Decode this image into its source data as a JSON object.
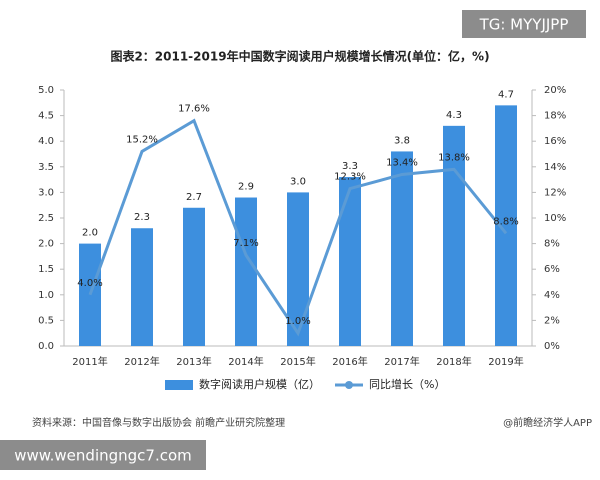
{
  "chart_data": {
    "type": "bar",
    "title": "图表2：2011-2019年中国数字阅读用户规模增长情况(单位：亿，%)",
    "categories": [
      "2011年",
      "2012年",
      "2013年",
      "2014年",
      "2015年",
      "2016年",
      "2017年",
      "2018年",
      "2019年"
    ],
    "series": [
      {
        "name": "数字阅读用户规模（亿）",
        "type": "bar",
        "color": "#3d8fde",
        "values": [
          2.0,
          2.3,
          2.7,
          2.9,
          3.0,
          3.3,
          3.8,
          4.3,
          4.7
        ],
        "value_labels": [
          "2.0",
          "2.3",
          "2.7",
          "2.9",
          "3.0",
          "3.3",
          "3.8",
          "4.3",
          "4.7"
        ]
      },
      {
        "name": "同比增长（%）",
        "type": "line",
        "axis": "y2",
        "color": "#5b9bd5",
        "values": [
          4.0,
          15.2,
          17.6,
          7.1,
          1.0,
          12.3,
          13.4,
          13.8,
          8.8
        ],
        "value_labels": [
          "4.0%",
          "15.2%",
          "17.6%",
          "7.1%",
          "1.0%",
          "12.3%",
          "13.4%",
          "13.8%",
          "8.8%"
        ]
      }
    ],
    "ylim": [
      0,
      5
    ],
    "yticks": [
      {
        "value": 0,
        "label": "0.0"
      },
      {
        "value": 0.5,
        "label": "0.5"
      },
      {
        "value": 1,
        "label": "1.0"
      },
      {
        "value": 1.5,
        "label": "1.5"
      },
      {
        "value": 2,
        "label": "2.0"
      },
      {
        "value": 2.5,
        "label": "2.5"
      },
      {
        "value": 3,
        "label": "3.0"
      },
      {
        "value": 3.5,
        "label": "3.5"
      },
      {
        "value": 4,
        "label": "4.0"
      },
      {
        "value": 4.5,
        "label": "4.5"
      },
      {
        "value": 5,
        "label": "5.0"
      }
    ],
    "y2lim": [
      0,
      20
    ],
    "y2ticks": [
      {
        "value": 0,
        "label": "0%"
      },
      {
        "value": 2,
        "label": "2%"
      },
      {
        "value": 4,
        "label": "4%"
      },
      {
        "value": 6,
        "label": "6%"
      },
      {
        "value": 8,
        "label": "8%"
      },
      {
        "value": 10,
        "label": "10%"
      },
      {
        "value": 12,
        "label": "12%"
      },
      {
        "value": 14,
        "label": "14%"
      },
      {
        "value": 16,
        "label": "16%"
      },
      {
        "value": 18,
        "label": "18%"
      },
      {
        "value": 20,
        "label": "20%"
      }
    ],
    "legend": "bottom",
    "source": "资料来源：中国音像与数字出版协会 前瞻产业研究院整理",
    "credit": "@前瞻经济学人APP"
  },
  "watermarks": [
    "TG: MYYJJPP",
    "www.wendingngc7.com"
  ]
}
